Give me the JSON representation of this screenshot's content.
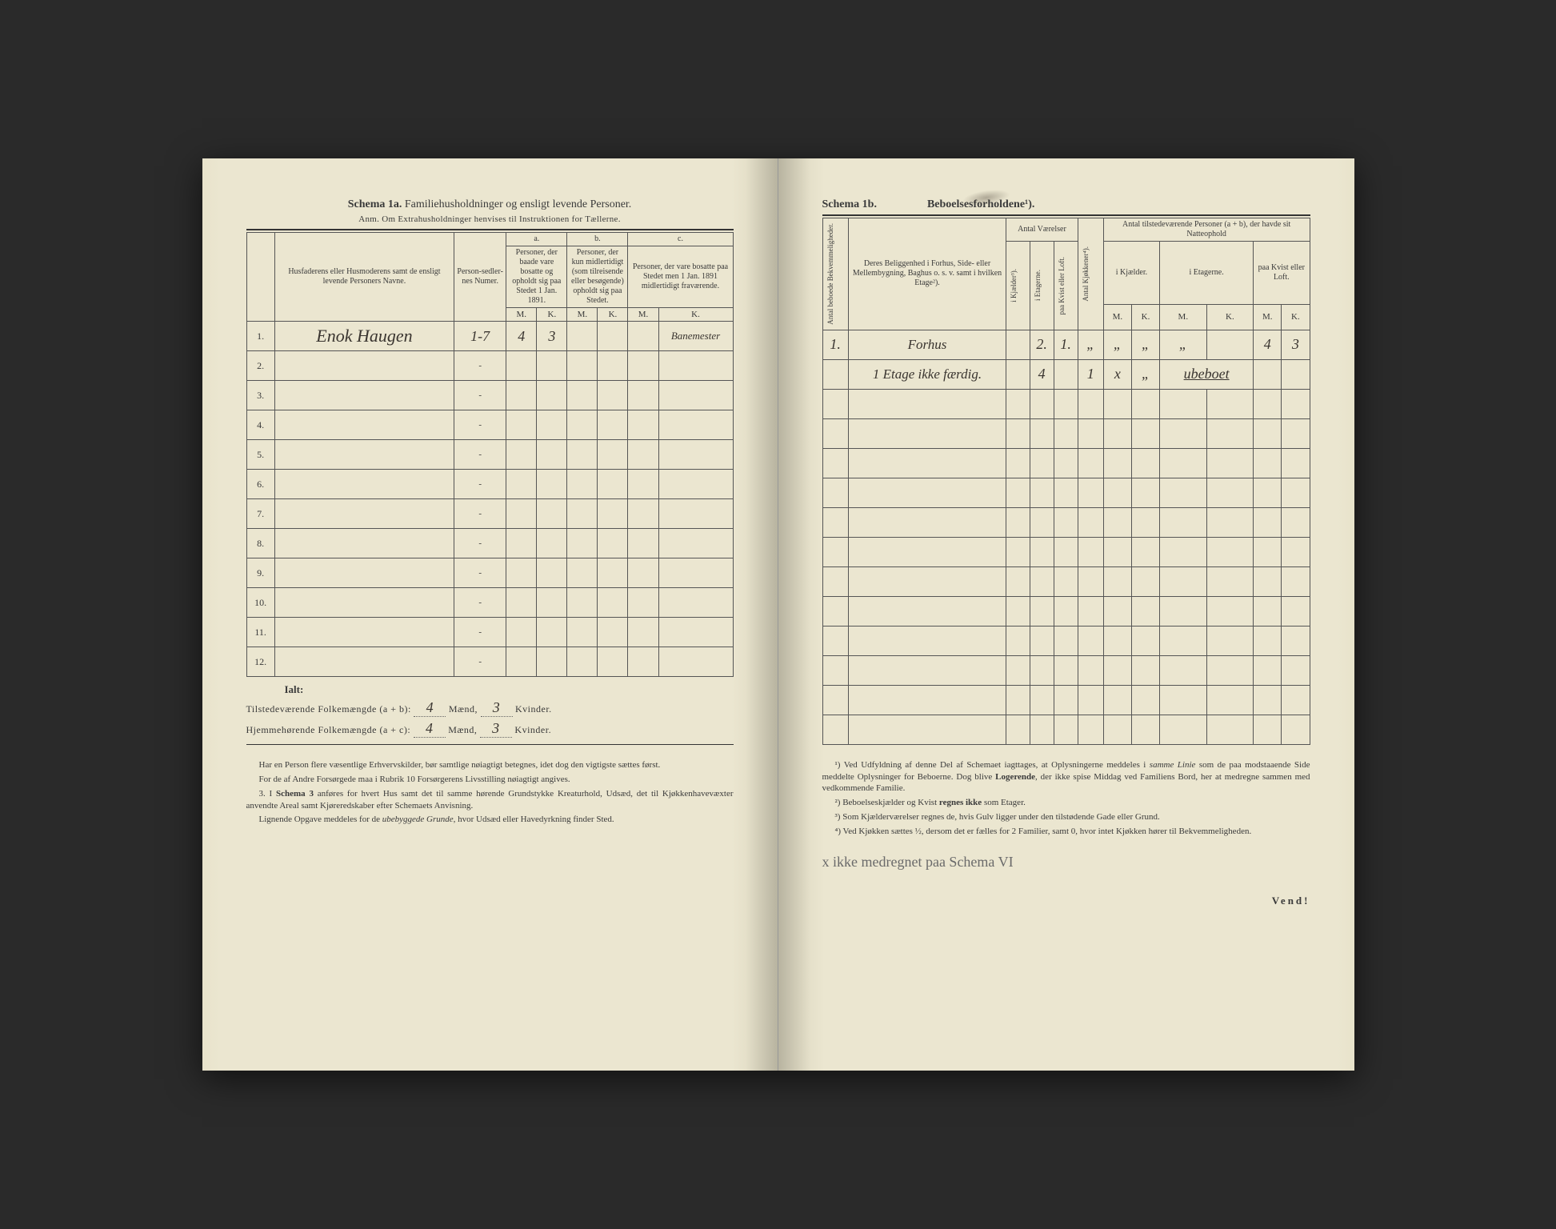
{
  "left": {
    "title_prefix": "Schema 1a.",
    "title": "Familiehusholdninger og ensligt levende Personer.",
    "anm": "Anm. Om Extrahusholdninger henvises til Instruktionen for Tællerne.",
    "headers": {
      "col1": "Husfaderens eller Husmoderens samt de ensligt levende Personers Navne.",
      "col2": "Person-sedler-nes Numer.",
      "a_label": "a.",
      "a_text": "Personer, der baade vare bosatte og opholdt sig paa Stedet 1 Jan. 1891.",
      "b_label": "b.",
      "b_text": "Personer, der kun midlertidigt (som tilreisende eller besøgende) opholdt sig paa Stedet.",
      "c_label": "c.",
      "c_text": "Personer, der vare bosatte paa Stedet men 1 Jan. 1891 midlertidigt fraværende.",
      "M": "M.",
      "K": "K."
    },
    "rows": [
      {
        "n": "1.",
        "name": "Enok Haugen",
        "numer": "1-7",
        "aM": "4",
        "aK": "3",
        "bM": "",
        "bK": "",
        "cM": "",
        "cK": "Banemester"
      },
      {
        "n": "2.",
        "name": "",
        "numer": "-",
        "aM": "",
        "aK": "",
        "bM": "",
        "bK": "",
        "cM": "",
        "cK": ""
      },
      {
        "n": "3.",
        "name": "",
        "numer": "-",
        "aM": "",
        "aK": "",
        "bM": "",
        "bK": "",
        "cM": "",
        "cK": ""
      },
      {
        "n": "4.",
        "name": "",
        "numer": "-",
        "aM": "",
        "aK": "",
        "bM": "",
        "bK": "",
        "cM": "",
        "cK": ""
      },
      {
        "n": "5.",
        "name": "",
        "numer": "-",
        "aM": "",
        "aK": "",
        "bM": "",
        "bK": "",
        "cM": "",
        "cK": ""
      },
      {
        "n": "6.",
        "name": "",
        "numer": "-",
        "aM": "",
        "aK": "",
        "bM": "",
        "bK": "",
        "cM": "",
        "cK": ""
      },
      {
        "n": "7.",
        "name": "",
        "numer": "-",
        "aM": "",
        "aK": "",
        "bM": "",
        "bK": "",
        "cM": "",
        "cK": ""
      },
      {
        "n": "8.",
        "name": "",
        "numer": "-",
        "aM": "",
        "aK": "",
        "bM": "",
        "bK": "",
        "cM": "",
        "cK": ""
      },
      {
        "n": "9.",
        "name": "",
        "numer": "-",
        "aM": "",
        "aK": "",
        "bM": "",
        "bK": "",
        "cM": "",
        "cK": ""
      },
      {
        "n": "10.",
        "name": "",
        "numer": "-",
        "aM": "",
        "aK": "",
        "bM": "",
        "bK": "",
        "cM": "",
        "cK": ""
      },
      {
        "n": "11.",
        "name": "",
        "numer": "-",
        "aM": "",
        "aK": "",
        "bM": "",
        "bK": "",
        "cM": "",
        "cK": ""
      },
      {
        "n": "12.",
        "name": "",
        "numer": "-",
        "aM": "",
        "aK": "",
        "bM": "",
        "bK": "",
        "cM": "",
        "cK": ""
      }
    ],
    "ialt": "Ialt:",
    "sum1_label": "Tilstedeværende Folkemængde (a + b): ",
    "sum1_m": "4",
    "sum1_m_suffix": " Mænd, ",
    "sum1_k": "3",
    "sum1_k_suffix": " Kvinder.",
    "sum2_label": "Hjemmehørende Folkemængde (a + c): ",
    "sum2_m": "4",
    "sum2_k": "3",
    "notes": [
      "Har en Person flere væsentlige Erhvervskilder, bør samtlige nøiagtigt betegnes, idet dog den vigtigste sættes først.",
      "For de af Andre Forsørgede maa i Rubrik 10 Forsørgerens Livsstilling nøiagtigt angives.",
      "3. I Schema 3 anføres for hvert Hus samt det til samme hørende Grundstykke Kreaturhold, Udsæd, det til Kjøkkenhavevæxter anvendte Areal samt Kjøreredskaber efter Schemaets Anvisning.",
      "Lignende Opgave meddeles for de ubebyggede Grunde, hvor Udsæd eller Havedyrkning finder Sted."
    ]
  },
  "right": {
    "title_prefix": "Schema 1b.",
    "title": "Beboelsesforholdene¹).",
    "headers": {
      "col0": "Antal beboede Bekvemmeligheder.",
      "col1": "Deres Beliggenhed i Forhus, Side- eller Mellembygning, Baghus o. s. v. samt i hvilken Etage²).",
      "vaer": "Antal Værelser",
      "v1": "i Kjælder³).",
      "v2": "i Etagerne.",
      "v3": "paa Kvist eller Loft.",
      "kjok": "Antal Kjøkkener⁴).",
      "pers": "Antal tilstedeværende Personer (a + b), der havde sit Natteophold",
      "p1": "i Kjælder.",
      "p2": "i Etagerne.",
      "p3": "paa Kvist eller Loft.",
      "M": "M.",
      "K": "K."
    },
    "rows": [
      {
        "n": "1.",
        "loc": "Forhus",
        "v1": "",
        "v2": "2.",
        "v3": "1.",
        "kjok": "„",
        "p1m": "„",
        "p1k": "„",
        "p2m": "„",
        "p2k": "",
        "p3m": "4",
        "p3k": "3"
      },
      {
        "n": "",
        "loc": "1 Etage ikke færdig.",
        "v1": "",
        "v2": "4",
        "v3": "",
        "kjok": "1",
        "p1m": "x",
        "p1k": "„",
        "p2m": "",
        "p2k": "ubeboet",
        "p3m": "",
        "p3k": ""
      }
    ],
    "footnotes": [
      "¹) Ved Udfyldning af denne Del af Schemaet iagttages, at Oplysningerne meddeles i samme Linie som de paa modstaaende Side meddelte Oplysninger for Beboerne. Dog blive Logerende, der ikke spise Middag ved Familiens Bord, her at medregne sammen med vedkommende Familie.",
      "²) Beboelseskjælder og Kvist regnes ikke som Etager.",
      "³) Som Kjælderværelser regnes de, hvis Gulv ligger under den tilstødende Gade eller Grund.",
      "⁴) Ved Kjøkken sættes ½, dersom det er fælles for 2 Familier, samt 0, hvor intet Kjøkken hører til Bekvemmeligheden."
    ],
    "hw_note": "x ikke medregnet paa Schema VI",
    "vend": "Vend!"
  },
  "colors": {
    "paper": "#ebe6d0",
    "ink": "#3a3a3a",
    "handwriting": "#3a3530"
  }
}
